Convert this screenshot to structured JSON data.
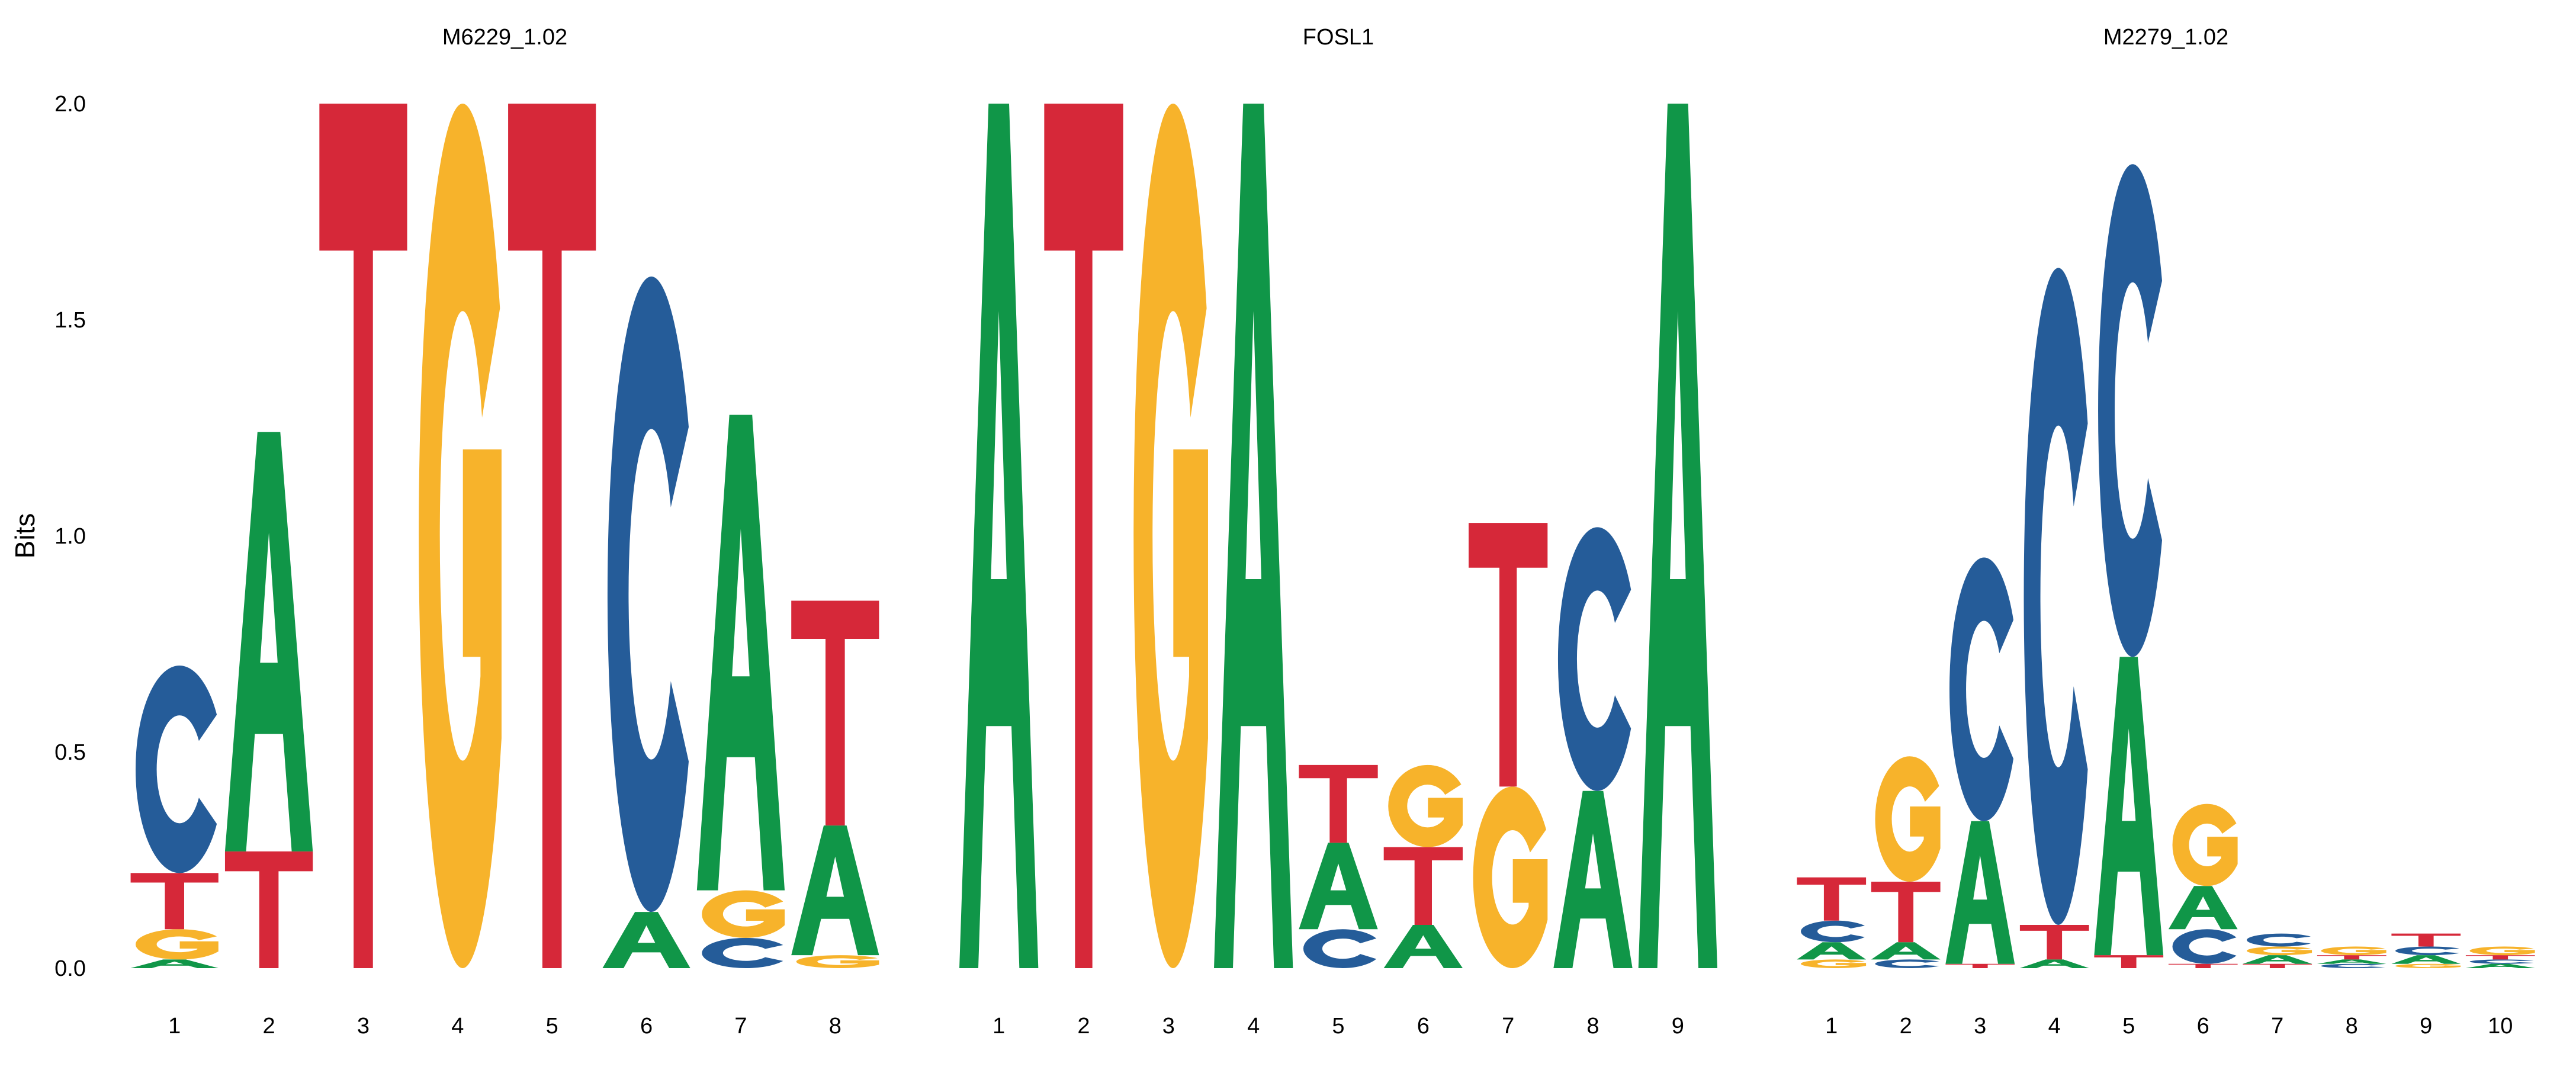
{
  "chart_data": [
    {
      "type": "sequence-logo",
      "title": "M6229_1.02",
      "ylabel": "Bits",
      "ylim": [
        0,
        2
      ],
      "yticks": [
        "0.0",
        "0.5",
        "1.0",
        "1.5",
        "2.0"
      ],
      "positions": [
        "1",
        "2",
        "3",
        "4",
        "5",
        "6",
        "7",
        "8"
      ],
      "stacks": [
        [
          [
            "A",
            0.02
          ],
          [
            "G",
            0.07
          ],
          [
            "T",
            0.13
          ],
          [
            "C",
            0.48
          ]
        ],
        [
          [
            "T",
            0.27
          ],
          [
            "A",
            0.97
          ]
        ],
        [
          [
            "T",
            2.0
          ]
        ],
        [
          [
            "G",
            2.0
          ]
        ],
        [
          [
            "T",
            2.0
          ]
        ],
        [
          [
            "A",
            0.13
          ],
          [
            "C",
            1.47
          ]
        ],
        [
          [
            "C",
            0.07
          ],
          [
            "G",
            0.11
          ],
          [
            "A",
            1.1
          ]
        ],
        [
          [
            "G",
            0.03
          ],
          [
            "A",
            0.3
          ],
          [
            "T",
            0.52
          ]
        ]
      ]
    },
    {
      "type": "sequence-logo",
      "title": "FOSL1",
      "ylabel": "",
      "ylim": [
        0,
        2
      ],
      "yticks": [],
      "positions": [
        "1",
        "2",
        "3",
        "4",
        "5",
        "6",
        "7",
        "8",
        "9"
      ],
      "stacks": [
        [
          [
            "A",
            2.0
          ]
        ],
        [
          [
            "T",
            2.0
          ]
        ],
        [
          [
            "G",
            2.0
          ]
        ],
        [
          [
            "A",
            2.0
          ]
        ],
        [
          [
            "C",
            0.09
          ],
          [
            "A",
            0.2
          ],
          [
            "T",
            0.18
          ]
        ],
        [
          [
            "A",
            0.1
          ],
          [
            "T",
            0.18
          ],
          [
            "G",
            0.19
          ]
        ],
        [
          [
            "G",
            0.42
          ],
          [
            "T",
            0.61
          ]
        ],
        [
          [
            "A",
            0.41
          ],
          [
            "C",
            0.61
          ]
        ],
        [
          [
            "A",
            2.0
          ]
        ]
      ]
    },
    {
      "type": "sequence-logo",
      "title": "M2279_1.02",
      "ylabel": "",
      "ylim": [
        0,
        2
      ],
      "yticks": [],
      "positions": [
        "1",
        "2",
        "3",
        "4",
        "5",
        "6",
        "7",
        "8",
        "9",
        "10"
      ],
      "stacks": [
        [
          [
            "G",
            0.02
          ],
          [
            "A",
            0.04
          ],
          [
            "C",
            0.05
          ],
          [
            "T",
            0.1
          ]
        ],
        [
          [
            "C",
            0.02
          ],
          [
            "A",
            0.04
          ],
          [
            "T",
            0.14
          ],
          [
            "G",
            0.29
          ]
        ],
        [
          [
            "T",
            0.01
          ],
          [
            "A",
            0.33
          ],
          [
            "C",
            0.61
          ]
        ],
        [
          [
            "A",
            0.02
          ],
          [
            "T",
            0.08
          ],
          [
            "C",
            1.52
          ]
        ],
        [
          [
            "T",
            0.03
          ],
          [
            "A",
            0.69
          ],
          [
            "C",
            1.14
          ]
        ],
        [
          [
            "T",
            0.01
          ],
          [
            "C",
            0.08
          ],
          [
            "A",
            0.1
          ],
          [
            "G",
            0.19
          ]
        ],
        [
          [
            "T",
            0.01
          ],
          [
            "A",
            0.02
          ],
          [
            "G",
            0.02
          ],
          [
            "C",
            0.03
          ]
        ],
        [
          [
            "C",
            0.01
          ],
          [
            "A",
            0.01
          ],
          [
            "T",
            0.01
          ],
          [
            "G",
            0.02
          ]
        ],
        [
          [
            "G",
            0.01
          ],
          [
            "A",
            0.02
          ],
          [
            "C",
            0.02
          ],
          [
            "T",
            0.03
          ]
        ],
        [
          [
            "A",
            0.01
          ],
          [
            "C",
            0.01
          ],
          [
            "T",
            0.01
          ],
          [
            "G",
            0.02
          ]
        ]
      ]
    }
  ],
  "colors": {
    "A": "#109648",
    "C": "#255c99",
    "G": "#f7b32b",
    "T": "#d62839"
  }
}
